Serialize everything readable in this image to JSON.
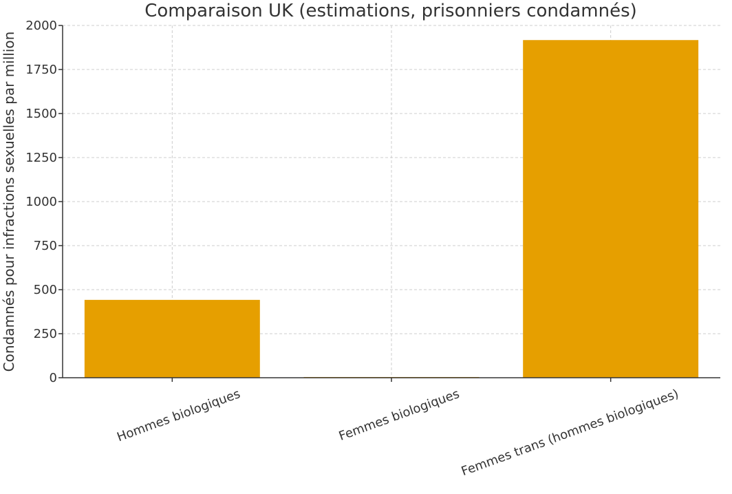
{
  "chart_data": {
    "type": "bar",
    "title": "Comparaison UK (estimations, prisonniers condamnés)",
    "xlabel": "",
    "ylabel": "Condamnés pour infractions sexuelles par million",
    "categories": [
      "Hommes biologiques",
      "Femmes biologiques",
      "Femmes trans (hommes biologiques)"
    ],
    "values": [
      442,
      4,
      1917
    ],
    "ylim": [
      0,
      2000
    ],
    "yticks": [
      0,
      250,
      500,
      750,
      1000,
      1250,
      1500,
      1750,
      2000
    ],
    "bar_color": "#E69F00",
    "grid": true,
    "legend": "none"
  }
}
